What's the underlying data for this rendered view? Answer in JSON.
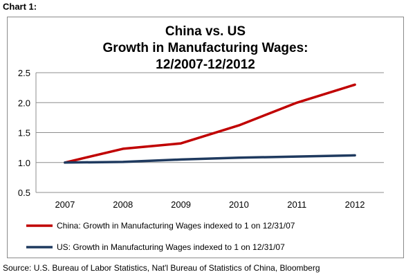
{
  "header": {
    "label": "Chart 1:"
  },
  "chart_data": {
    "type": "line",
    "title_lines": [
      "China vs. US",
      "Growth in Manufacturing Wages:",
      "12/2007-12/2012"
    ],
    "categories": [
      "2007",
      "2008",
      "2009",
      "2010",
      "2011",
      "2012"
    ],
    "ylim": [
      0.5,
      2.5
    ],
    "yticks": [
      "0.5",
      "1.0",
      "1.5",
      "2.0",
      "2.5"
    ],
    "grid": true,
    "legend_position": "bottom",
    "series": [
      {
        "name": "China: Growth in Manufacturing Wages indexed to 1 on 12/31/07",
        "values": [
          1.0,
          1.23,
          1.32,
          1.62,
          2.0,
          2.3
        ],
        "color": "#c00000"
      },
      {
        "name": "US: Growth in Manufacturing Wages indexed to 1 on 12/31/07",
        "values": [
          1.0,
          1.01,
          1.05,
          1.08,
          1.1,
          1.12
        ],
        "color": "#1f3a5f"
      }
    ]
  },
  "footer": {
    "source": "Source: U.S. Bureau of Labor Statistics, Nat'l Bureau of Statistics of China, Bloomberg"
  }
}
